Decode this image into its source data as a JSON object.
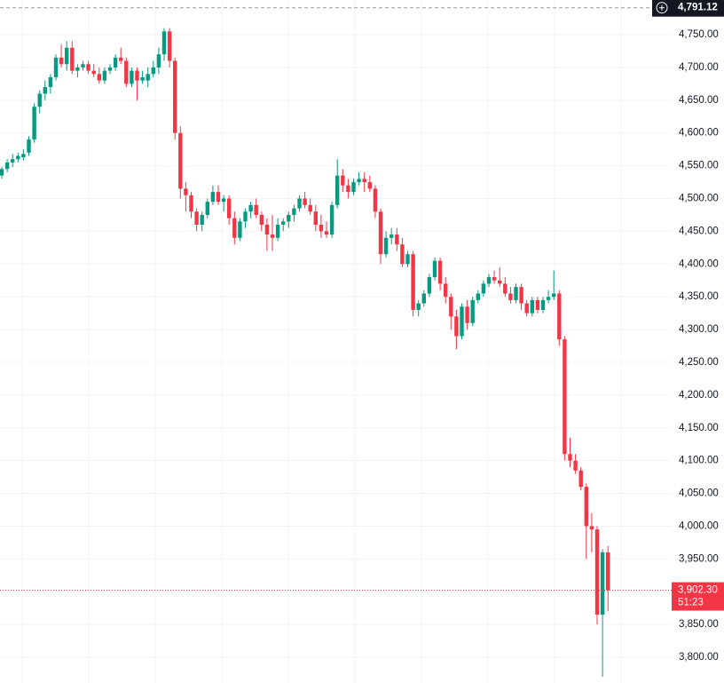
{
  "chart_data": {
    "type": "candlestick",
    "up_color": "#089981",
    "down_color": "#f23645",
    "ylim": [
      3760.7,
      4802.9
    ],
    "yticks": [
      {
        "value": 3800,
        "label": "3,800.00"
      },
      {
        "value": 3850,
        "label": "3,850.00"
      },
      {
        "value": 3900,
        "label": "3,900.00"
      },
      {
        "value": 3950,
        "label": "3,950.00"
      },
      {
        "value": 4000,
        "label": "4,000.00"
      },
      {
        "value": 4050,
        "label": "4,050.00"
      },
      {
        "value": 4100,
        "label": "4,100.00"
      },
      {
        "value": 4150,
        "label": "4,150.00"
      },
      {
        "value": 4200,
        "label": "4,200.00"
      },
      {
        "value": 4250,
        "label": "4,250.00"
      },
      {
        "value": 4300,
        "label": "4,300.00"
      },
      {
        "value": 4350,
        "label": "4,350.00"
      },
      {
        "value": 4400,
        "label": "4,400.00"
      },
      {
        "value": 4450,
        "label": "4,450.00"
      },
      {
        "value": 4500,
        "label": "4,500.00"
      },
      {
        "value": 4550,
        "label": "4,550.00"
      },
      {
        "value": 4600,
        "label": "4,600.00"
      },
      {
        "value": 4650,
        "label": "4,650.00"
      },
      {
        "value": 4700,
        "label": "4,700.00"
      },
      {
        "value": 4750,
        "label": "4,750.00"
      }
    ],
    "grid": true,
    "high_marker": {
      "value": 4791.12,
      "label": "4,791.12"
    },
    "last_price": {
      "value": 3902.3,
      "label": "3,902.30",
      "countdown": "51:23"
    },
    "ohlc": [
      [
        4535,
        4548,
        4530,
        4545
      ],
      [
        4545,
        4560,
        4540,
        4555
      ],
      [
        4555,
        4568,
        4548,
        4560
      ],
      [
        4560,
        4570,
        4555,
        4565
      ],
      [
        4563,
        4575,
        4558,
        4568
      ],
      [
        4570,
        4595,
        4565,
        4590
      ],
      [
        4590,
        4645,
        4585,
        4640
      ],
      [
        4640,
        4665,
        4630,
        4660
      ],
      [
        4660,
        4680,
        4650,
        4670
      ],
      [
        4670,
        4690,
        4660,
        4685
      ],
      [
        4685,
        4720,
        4680,
        4715
      ],
      [
        4715,
        4735,
        4700,
        4705
      ],
      [
        4705,
        4740,
        4695,
        4730
      ],
      [
        4730,
        4740,
        4690,
        4695
      ],
      [
        4695,
        4705,
        4685,
        4700
      ],
      [
        4700,
        4710,
        4695,
        4705
      ],
      [
        4705,
        4710,
        4690,
        4695
      ],
      [
        4695,
        4705,
        4685,
        4690
      ],
      [
        4690,
        4700,
        4675,
        4680
      ],
      [
        4680,
        4700,
        4675,
        4695
      ],
      [
        4695,
        4705,
        4690,
        4700
      ],
      [
        4700,
        4720,
        4695,
        4715
      ],
      [
        4715,
        4730,
        4705,
        4710
      ],
      [
        4710,
        4715,
        4670,
        4675
      ],
      [
        4675,
        4700,
        4670,
        4695
      ],
      [
        4695,
        4700,
        4650,
        4680
      ],
      [
        4680,
        4695,
        4675,
        4685
      ],
      [
        4680,
        4700,
        4670,
        4690
      ],
      [
        4690,
        4710,
        4685,
        4700
      ],
      [
        4700,
        4730,
        4690,
        4720
      ],
      [
        4720,
        4760,
        4710,
        4755
      ],
      [
        4755,
        4760,
        4700,
        4710
      ],
      [
        4710,
        4715,
        4590,
        4600
      ],
      [
        4600,
        4610,
        4500,
        4515
      ],
      [
        4515,
        4525,
        4480,
        4505
      ],
      [
        4505,
        4510,
        4470,
        4480
      ],
      [
        4480,
        4485,
        4450,
        4460
      ],
      [
        4460,
        4480,
        4450,
        4475
      ],
      [
        4475,
        4500,
        4470,
        4495
      ],
      [
        4495,
        4520,
        4490,
        4510
      ],
      [
        4510,
        4520,
        4490,
        4495
      ],
      [
        4495,
        4505,
        4480,
        4500
      ],
      [
        4500,
        4505,
        4460,
        4470
      ],
      [
        4470,
        4480,
        4430,
        4440
      ],
      [
        4440,
        4470,
        4435,
        4465
      ],
      [
        4465,
        4485,
        4455,
        4480
      ],
      [
        4480,
        4495,
        4470,
        4490
      ],
      [
        4490,
        4500,
        4470,
        4475
      ],
      [
        4475,
        4480,
        4450,
        4460
      ],
      [
        4460,
        4470,
        4420,
        4445
      ],
      [
        4445,
        4475,
        4420,
        4440
      ],
      [
        4440,
        4470,
        4435,
        4460
      ],
      [
        4460,
        4470,
        4450,
        4465
      ],
      [
        4465,
        4480,
        4455,
        4475
      ],
      [
        4475,
        4490,
        4465,
        4485
      ],
      [
        4485,
        4505,
        4480,
        4500
      ],
      [
        4500,
        4510,
        4485,
        4490
      ],
      [
        4490,
        4500,
        4475,
        4480
      ],
      [
        4480,
        4490,
        4450,
        4460
      ],
      [
        4460,
        4475,
        4440,
        4450
      ],
      [
        4450,
        4465,
        4440,
        4445
      ],
      [
        4445,
        4495,
        4440,
        4490
      ],
      [
        4490,
        4560,
        4485,
        4535
      ],
      [
        4535,
        4545,
        4510,
        4520
      ],
      [
        4520,
        4530,
        4500,
        4510
      ],
      [
        4510,
        4530,
        4505,
        4525
      ],
      [
        4525,
        4540,
        4520,
        4530
      ],
      [
        4530,
        4540,
        4510,
        4525
      ],
      [
        4525,
        4535,
        4510,
        4515
      ],
      [
        4515,
        4520,
        4470,
        4480
      ],
      [
        4480,
        4485,
        4400,
        4415
      ],
      [
        4415,
        4450,
        4410,
        4440
      ],
      [
        4440,
        4455,
        4430,
        4445
      ],
      [
        4445,
        4455,
        4420,
        4430
      ],
      [
        4430,
        4440,
        4395,
        4400
      ],
      [
        4400,
        4420,
        4395,
        4415
      ],
      [
        4415,
        4420,
        4320,
        4330
      ],
      [
        4330,
        4345,
        4320,
        4340
      ],
      [
        4340,
        4360,
        4335,
        4355
      ],
      [
        4355,
        4385,
        4350,
        4380
      ],
      [
        4380,
        4410,
        4375,
        4405
      ],
      [
        4405,
        4410,
        4360,
        4370
      ],
      [
        4370,
        4380,
        4340,
        4350
      ],
      [
        4350,
        4355,
        4300,
        4320
      ],
      [
        4320,
        4330,
        4270,
        4290
      ],
      [
        4290,
        4340,
        4285,
        4335
      ],
      [
        4335,
        4345,
        4300,
        4310
      ],
      [
        4310,
        4350,
        4305,
        4345
      ],
      [
        4345,
        4360,
        4340,
        4355
      ],
      [
        4355,
        4375,
        4350,
        4370
      ],
      [
        4370,
        4385,
        4365,
        4380
      ],
      [
        4380,
        4390,
        4370,
        4375
      ],
      [
        4375,
        4395,
        4365,
        4370
      ],
      [
        4370,
        4380,
        4350,
        4355
      ],
      [
        4355,
        4365,
        4340,
        4345
      ],
      [
        4345,
        4370,
        4340,
        4365
      ],
      [
        4365,
        4370,
        4330,
        4340
      ],
      [
        4340,
        4345,
        4320,
        4325
      ],
      [
        4325,
        4350,
        4320,
        4345
      ],
      [
        4345,
        4350,
        4325,
        4330
      ],
      [
        4330,
        4350,
        4325,
        4345
      ],
      [
        4345,
        4360,
        4340,
        4350
      ],
      [
        4350,
        4390,
        4345,
        4355
      ],
      [
        4355,
        4360,
        4275,
        4285
      ],
      [
        4285,
        4290,
        4100,
        4110
      ],
      [
        4110,
        4135,
        4090,
        4100
      ],
      [
        4100,
        4110,
        4080,
        4085
      ],
      [
        4085,
        4090,
        4055,
        4060
      ],
      [
        4060,
        4065,
        3950,
        4000
      ],
      [
        4000,
        4020,
        3960,
        3995
      ],
      [
        3995,
        4000,
        3850,
        3865
      ],
      [
        3865,
        3965,
        3770,
        3960
      ],
      [
        3960,
        3970,
        3870,
        3902.3
      ]
    ]
  }
}
